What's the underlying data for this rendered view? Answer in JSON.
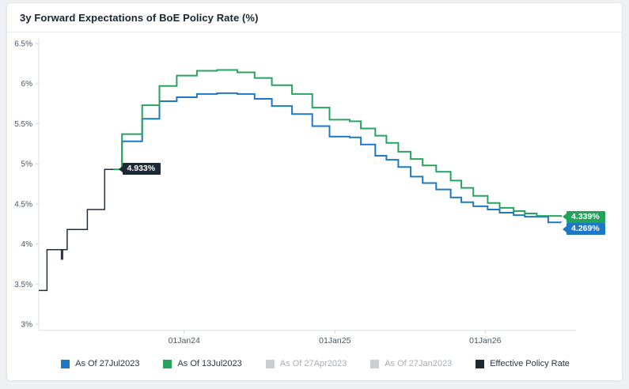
{
  "header": {
    "title": "3y Forward Expectations of BoE Policy Rate (%)"
  },
  "chart_data": {
    "type": "line",
    "step": true,
    "title": "3y Forward Expectations of BoE Policy Rate (%)",
    "xlabel": "",
    "ylabel": "",
    "ylim": [
      3.0,
      6.5
    ],
    "x_domain": [
      "2023-01-13",
      "2026-07-25"
    ],
    "grid": false,
    "legend_position": "bottom",
    "y_ticks": [
      {
        "label": "6.5%",
        "value": 6.5
      },
      {
        "label": "6%",
        "value": 6.0
      },
      {
        "label": "5.5%",
        "value": 5.5
      },
      {
        "label": "5%",
        "value": 5.0
      },
      {
        "label": "4.5%",
        "value": 4.5
      },
      {
        "label": "4%",
        "value": 4.0
      },
      {
        "label": "3.5%",
        "value": 3.5
      },
      {
        "label": "3%",
        "value": 3.0
      }
    ],
    "x_ticks": [
      {
        "label": "01Jan24",
        "date": "2024-01-01"
      },
      {
        "label": "01Jan25",
        "date": "2025-01-01"
      },
      {
        "label": "01Jan26",
        "date": "2026-01-01"
      }
    ],
    "series": [
      {
        "id": "effective-policy-rate",
        "name": "Effective Policy Rate",
        "color": "#222d3a",
        "width": 1.5,
        "visible": true,
        "end_label": "4.933%",
        "end_label_color": "#1d2935",
        "points": [
          [
            "2023-01-13",
            3.42
          ],
          [
            "2023-02-02",
            3.93
          ],
          [
            "2023-03-09",
            3.81
          ],
          [
            "2023-03-12",
            3.93
          ],
          [
            "2023-03-23",
            4.18
          ],
          [
            "2023-05-11",
            4.43
          ],
          [
            "2023-06-22",
            4.93
          ],
          [
            "2023-07-27",
            4.933
          ]
        ]
      },
      {
        "id": "as-of-27jul2023",
        "name": "As Of 27Jul2023",
        "color": "#1e78c4",
        "width": 2,
        "visible": true,
        "end_label": "4.269%",
        "end_label_color": "#1e78c4",
        "points": [
          [
            "2023-07-27",
            4.93
          ],
          [
            "2023-08-03",
            5.28
          ],
          [
            "2023-09-21",
            5.56
          ],
          [
            "2023-11-02",
            5.78
          ],
          [
            "2023-12-14",
            5.83
          ],
          [
            "2024-02-01",
            5.87
          ],
          [
            "2024-03-21",
            5.88
          ],
          [
            "2024-05-09",
            5.87
          ],
          [
            "2024-06-20",
            5.81
          ],
          [
            "2024-08-01",
            5.72
          ],
          [
            "2024-09-19",
            5.62
          ],
          [
            "2024-11-07",
            5.47
          ],
          [
            "2024-12-19",
            5.34
          ],
          [
            "2025-02-06",
            5.33
          ],
          [
            "2025-03-05",
            5.24
          ],
          [
            "2025-04-09",
            5.1
          ],
          [
            "2025-05-06",
            5.05
          ],
          [
            "2025-06-04",
            4.96
          ],
          [
            "2025-07-04",
            4.84
          ],
          [
            "2025-08-02",
            4.76
          ],
          [
            "2025-09-04",
            4.68
          ],
          [
            "2025-10-09",
            4.58
          ],
          [
            "2025-11-04",
            4.52
          ],
          [
            "2025-12-03",
            4.47
          ],
          [
            "2026-01-07",
            4.43
          ],
          [
            "2026-02-05",
            4.39
          ],
          [
            "2026-03-11",
            4.36
          ],
          [
            "2026-04-07",
            4.34
          ],
          [
            "2026-06-03",
            4.27
          ],
          [
            "2026-07-04",
            4.269
          ]
        ]
      },
      {
        "id": "as-of-13jul2023",
        "name": "As Of 13Jul2023",
        "color": "#27a35f",
        "width": 2,
        "visible": true,
        "end_label": "4.339%",
        "end_label_color": "#21a35c",
        "points": [
          [
            "2023-07-13",
            4.93
          ],
          [
            "2023-08-03",
            5.37
          ],
          [
            "2023-09-21",
            5.73
          ],
          [
            "2023-11-02",
            5.97
          ],
          [
            "2023-12-14",
            6.1
          ],
          [
            "2024-02-01",
            6.16
          ],
          [
            "2024-03-21",
            6.17
          ],
          [
            "2024-05-09",
            6.14
          ],
          [
            "2024-06-20",
            6.07
          ],
          [
            "2024-08-01",
            5.98
          ],
          [
            "2024-09-19",
            5.87
          ],
          [
            "2024-11-07",
            5.7
          ],
          [
            "2024-12-19",
            5.55
          ],
          [
            "2025-02-06",
            5.53
          ],
          [
            "2025-03-05",
            5.44
          ],
          [
            "2025-04-09",
            5.35
          ],
          [
            "2025-05-06",
            5.26
          ],
          [
            "2025-06-04",
            5.15
          ],
          [
            "2025-07-04",
            5.06
          ],
          [
            "2025-08-02",
            4.98
          ],
          [
            "2025-09-04",
            4.9
          ],
          [
            "2025-10-09",
            4.79
          ],
          [
            "2025-11-04",
            4.7
          ],
          [
            "2025-12-03",
            4.6
          ],
          [
            "2026-01-07",
            4.51
          ],
          [
            "2026-02-05",
            4.45
          ],
          [
            "2026-03-11",
            4.41
          ],
          [
            "2026-04-07",
            4.38
          ],
          [
            "2026-05-06",
            4.35
          ],
          [
            "2026-07-04",
            4.339
          ]
        ]
      }
    ],
    "legend": [
      {
        "label": "As Of 27Jul2023",
        "color": "#1e78c4",
        "active": true
      },
      {
        "label": "As Of 13Jul2023",
        "color": "#27a35f",
        "active": true
      },
      {
        "label": "As Of 27Apr2023",
        "color": "#caced3",
        "active": false
      },
      {
        "label": "As Of 27Jan2023",
        "color": "#caced3",
        "active": false
      },
      {
        "label": "Effective Policy Rate",
        "color": "#1d2935",
        "active": true
      }
    ],
    "annotations": [
      {
        "text": "4.933%",
        "value": 4.933,
        "color": "#1d2935",
        "series": "effective-policy-rate"
      },
      {
        "text": "4.339%",
        "value": 4.339,
        "color": "#21a35c",
        "series": "as-of-13jul2023"
      },
      {
        "text": "4.269%",
        "value": 4.269,
        "color": "#1e78c4",
        "series": "as-of-27jul2023"
      }
    ],
    "colors": {
      "axis_line": "#dde1e6",
      "tick_text": "#4a5560",
      "background": "#ffffff"
    }
  }
}
